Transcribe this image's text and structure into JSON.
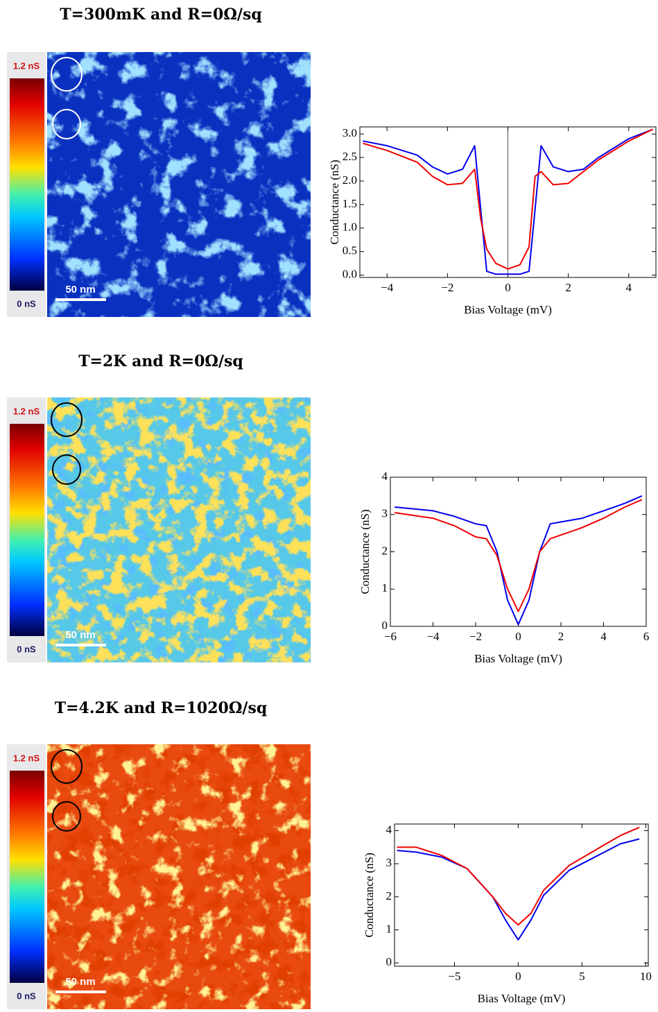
{
  "panels": [
    {
      "title": "T=300mK and R=0Ω/sq",
      "colorbar_max": "1.2 nS",
      "colorbar_min": "0 nS",
      "scale_bar": "50 nm"
    },
    {
      "title": "T=2K and R=0Ω/sq",
      "colorbar_max": "1.2 nS",
      "colorbar_min": "0 nS",
      "scale_bar": "50 nm"
    },
    {
      "title": "T=4.2K and R=1020Ω/sq",
      "colorbar_max": "1.2 nS",
      "colorbar_min": "0 nS",
      "scale_bar": "50 nm"
    }
  ],
  "chart_data": [
    {
      "type": "line",
      "xlabel": "Bias Voltage (mV)",
      "ylabel": "Conductance (nS)",
      "zero_line": true,
      "x": [
        -4.8,
        -4,
        -3,
        -2.5,
        -2,
        -1.5,
        -1.1,
        -0.9,
        -0.7,
        -0.4,
        0,
        0.4,
        0.7,
        0.9,
        1.1,
        1.5,
        2,
        2.5,
        3,
        4,
        4.8
      ],
      "series": [
        {
          "name": "blue",
          "color": "#0000ee",
          "values": [
            2.85,
            2.75,
            2.55,
            2.3,
            2.15,
            2.25,
            2.75,
            1.4,
            0.08,
            0.02,
            0.02,
            0.02,
            0.08,
            1.4,
            2.75,
            2.3,
            2.2,
            2.25,
            2.5,
            2.9,
            3.1
          ]
        },
        {
          "name": "red",
          "color": "#ee0000",
          "values": [
            2.8,
            2.65,
            2.4,
            2.1,
            1.92,
            1.95,
            2.25,
            1.2,
            0.55,
            0.25,
            0.13,
            0.22,
            0.6,
            2.1,
            2.2,
            1.92,
            1.95,
            2.2,
            2.45,
            2.85,
            3.1
          ]
        }
      ],
      "xlim": [
        -4.9,
        4.9
      ],
      "ylim": [
        -0.05,
        3.15
      ],
      "xticks": [
        {
          "value": -4,
          "label": "−4"
        },
        {
          "value": -2,
          "label": "−2"
        },
        0,
        2,
        4
      ],
      "yticks": [
        {
          "value": 0,
          "label": "0.0"
        },
        0.5,
        {
          "value": 1,
          "label": "1.0"
        },
        1.5,
        {
          "value": 2,
          "label": "2.0"
        },
        2.5,
        {
          "value": 3,
          "label": "3.0"
        }
      ]
    },
    {
      "type": "line",
      "xlabel": "Bias Voltage (mV)",
      "ylabel": "Conductance (nS)",
      "zero_line": false,
      "x": [
        -5.8,
        -4,
        -3,
        -2,
        -1.5,
        -1,
        -0.5,
        0,
        0.5,
        1,
        1.5,
        2,
        3,
        4,
        5,
        5.8
      ],
      "series": [
        {
          "name": "blue",
          "color": "#0000ee",
          "values": [
            3.2,
            3.1,
            2.95,
            2.75,
            2.7,
            2.0,
            0.7,
            0.05,
            0.7,
            2.0,
            2.75,
            2.8,
            2.9,
            3.1,
            3.3,
            3.5
          ]
        },
        {
          "name": "red",
          "color": "#ee0000",
          "values": [
            3.05,
            2.9,
            2.7,
            2.4,
            2.35,
            1.9,
            1.0,
            0.4,
            1.0,
            2.0,
            2.35,
            2.45,
            2.65,
            2.9,
            3.2,
            3.4
          ]
        }
      ],
      "xlim": [
        -6,
        6
      ],
      "ylim": [
        0,
        4
      ],
      "xticks": [
        {
          "value": -6,
          "label": "−6"
        },
        {
          "value": -4,
          "label": "−4"
        },
        {
          "value": -2,
          "label": "−2"
        },
        0,
        2,
        4,
        6
      ],
      "yticks": [
        0,
        1,
        2,
        3,
        4
      ]
    },
    {
      "type": "line",
      "xlabel": "Bias Voltage (mV)",
      "ylabel": "Conductance (nS)",
      "zero_line": false,
      "x": [
        -9.5,
        -8,
        -6,
        -4,
        -2,
        -1,
        0,
        1,
        2,
        4,
        6,
        8,
        9.5
      ],
      "series": [
        {
          "name": "blue",
          "color": "#0000ee",
          "values": [
            3.4,
            3.35,
            3.2,
            2.85,
            2.0,
            1.3,
            0.7,
            1.3,
            2.05,
            2.8,
            3.2,
            3.6,
            3.75
          ]
        },
        {
          "name": "red",
          "color": "#ee0000",
          "values": [
            3.5,
            3.5,
            3.25,
            2.85,
            2.0,
            1.5,
            1.15,
            1.5,
            2.2,
            2.95,
            3.4,
            3.85,
            4.1
          ]
        }
      ],
      "xlim": [
        -9.7,
        10.2
      ],
      "ylim": [
        -0.1,
        4.2
      ],
      "xticks": [
        {
          "value": -5,
          "label": "−5"
        },
        0,
        5,
        10
      ],
      "yticks": [
        0,
        1,
        2,
        3,
        4
      ]
    }
  ]
}
